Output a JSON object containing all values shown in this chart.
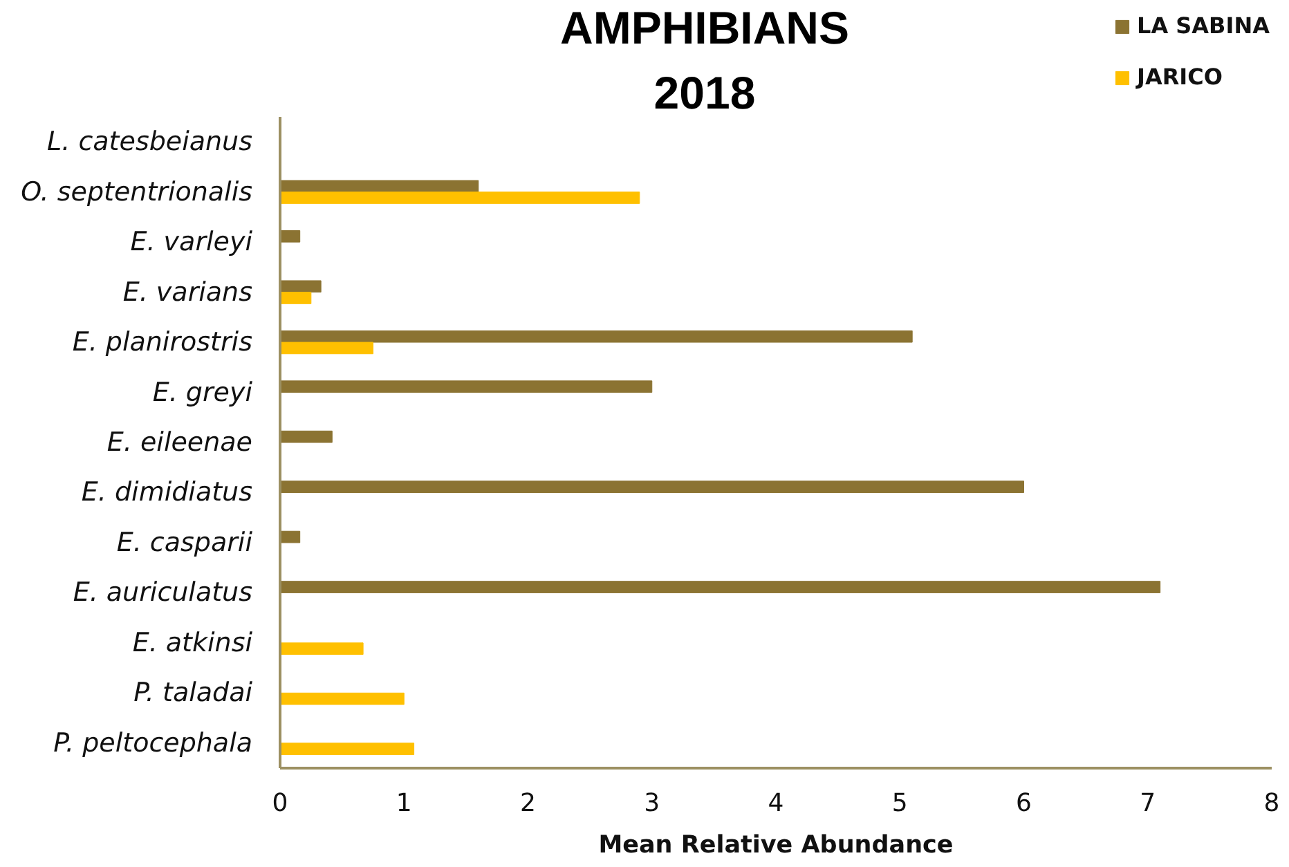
{
  "chart_data": {
    "type": "bar",
    "orientation": "horizontal",
    "title": "AMPHIBIANS\n2018",
    "xlabel": "Mean Relative Abundance",
    "categories": [
      "L. catesbeianus",
      "O. septentrionalis",
      "E. varleyi",
      "E. varians",
      "E. planirostris",
      "E. greyi",
      "E. eileenae",
      "E. dimidiatus",
      "E. casparii",
      "E. auriculatus",
      "E. atkinsi",
      "P. taladai",
      "P. peltocephala"
    ],
    "series": [
      {
        "name": "LA SABINA",
        "color": "#8b7332",
        "values": [
          null,
          1.6,
          0.16,
          0.33,
          5.1,
          3.0,
          0.42,
          6.0,
          0.16,
          7.1,
          null,
          null,
          null
        ]
      },
      {
        "name": "JARICO",
        "color": "#ffc000",
        "values": [
          null,
          2.9,
          null,
          0.25,
          0.75,
          null,
          null,
          null,
          null,
          null,
          0.67,
          1.0,
          1.08
        ]
      }
    ],
    "xlim": [
      0,
      8
    ],
    "xticks": [
      0,
      1,
      2,
      3,
      4,
      5,
      6,
      7,
      8
    ],
    "grid": false,
    "legend": "top right"
  }
}
